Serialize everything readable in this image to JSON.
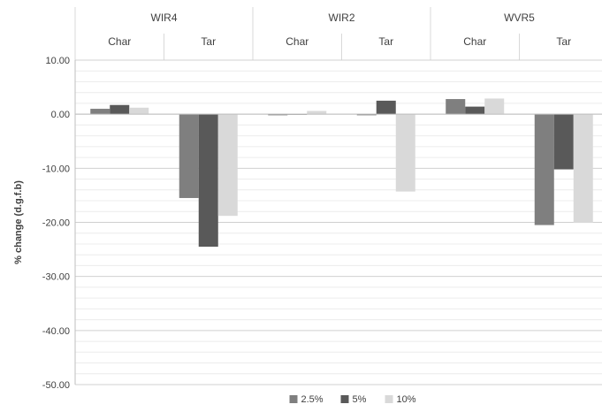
{
  "chart_data": {
    "type": "bar",
    "groups": [
      "WIR4",
      "WIR2",
      "WVR5"
    ],
    "subcategories": [
      "Char",
      "Tar"
    ],
    "categories": [
      "WIR4 Char",
      "WIR4 Tar",
      "WIR2 Char",
      "WIR2 Tar",
      "WVR5 Char",
      "WVR5 Tar"
    ],
    "series": [
      {
        "name": "2.5%",
        "color": "#7f7f7f",
        "values": [
          1.0,
          -15.5,
          -0.2,
          -0.2,
          2.8,
          -20.5
        ]
      },
      {
        "name": "5%",
        "color": "#595959",
        "values": [
          1.7,
          -24.5,
          0.0,
          2.5,
          1.4,
          -10.2
        ]
      },
      {
        "name": "10%",
        "color": "#d9d9d9",
        "values": [
          1.2,
          -18.8,
          0.6,
          -14.3,
          2.9,
          -20.1
        ]
      }
    ],
    "ylabel": "% change (d.g.f.b)",
    "xlabel": "",
    "ylim": [
      -50,
      10
    ],
    "yticks": [
      10,
      0,
      -10,
      -20,
      -30,
      -40,
      -50
    ],
    "ytick_labels": [
      "10.00",
      "0.00",
      "-10.00",
      "-20.00",
      "-30.00",
      "-40.00",
      "-50.00"
    ],
    "grid": true,
    "legend_position": "bottom"
  }
}
